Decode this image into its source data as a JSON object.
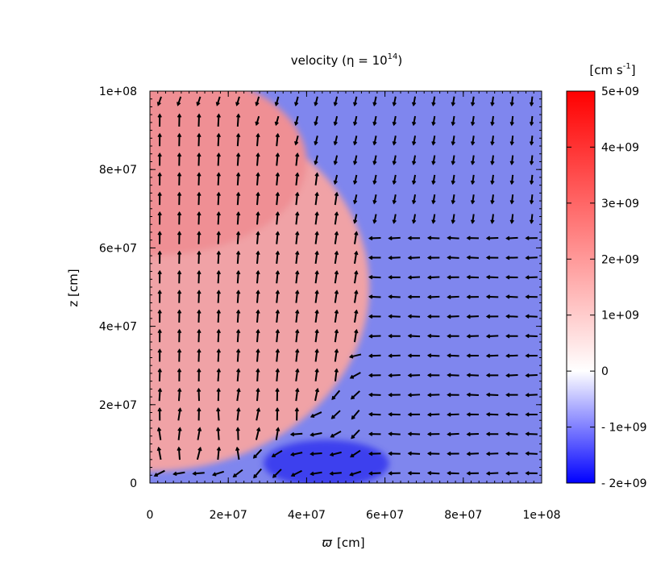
{
  "chart_data": {
    "type": "heatmap",
    "title": "velocity (η = 10",
    "title_exp": "14",
    "title_tail": ")",
    "xlabel_symbol": "ϖ",
    "xlabel_unit": "[cm]",
    "ylabel": "z [cm]",
    "colorbar_label": "[cm s",
    "colorbar_label_exp": "-1",
    "colorbar_label_tail": "]",
    "x_ticks": [
      {
        "value": 0,
        "label": "0"
      },
      {
        "value": 20000000.0,
        "label": "2e+07"
      },
      {
        "value": 40000000.0,
        "label": "4e+07"
      },
      {
        "value": 60000000.0,
        "label": "6e+07"
      },
      {
        "value": 80000000.0,
        "label": "8e+07"
      },
      {
        "value": 100000000.0,
        "label": "1e+08"
      }
    ],
    "y_ticks": [
      {
        "value": 0,
        "label": "0"
      },
      {
        "value": 20000000.0,
        "label": "2e+07"
      },
      {
        "value": 40000000.0,
        "label": "4e+07"
      },
      {
        "value": 60000000.0,
        "label": "6e+07"
      },
      {
        "value": 80000000.0,
        "label": "8e+07"
      },
      {
        "value": 100000000.0,
        "label": "1e+08"
      }
    ],
    "colorbar_ticks": [
      {
        "value": 5000000000.0,
        "label": "5e+09"
      },
      {
        "value": 4000000000.0,
        "label": "4e+09"
      },
      {
        "value": 3000000000.0,
        "label": "3e+09"
      },
      {
        "value": 2000000000.0,
        "label": "2e+09"
      },
      {
        "value": 1000000000.0,
        "label": "1e+09"
      },
      {
        "value": 0,
        "label": "0"
      },
      {
        "value": -1000000000.0,
        "label": "- 1e+09"
      },
      {
        "value": -2000000000.0,
        "label": "- 2e+09"
      }
    ],
    "xlim": [
      0,
      100000000.0
    ],
    "ylim": [
      0,
      100000000.0
    ],
    "clim": [
      -2000000000.0,
      5000000000.0
    ],
    "colormap": {
      "low": "#0000ff",
      "mid": "#ffffff",
      "high": "#ff0000"
    },
    "background_color": "#7f86ee",
    "regions": [
      {
        "name": "outflow-bubble",
        "center": [
          0,
          50000000.0
        ],
        "semi_axes": [
          56000000.0,
          47000000.0
        ],
        "value": 1400000000.0,
        "color": "#f0a2a6"
      },
      {
        "name": "upper-lobe",
        "center": [
          0,
          82000000.0
        ],
        "semi_axes": [
          40000000.0,
          24000000.0
        ],
        "value": 1600000000.0,
        "color": "#ef8f94"
      },
      {
        "name": "inflow-band",
        "center": [
          45000000.0,
          5000000.0
        ],
        "semi_axes": [
          16000000.0,
          6000000.0
        ],
        "value": -1600000000.0,
        "color": "#3e40ee"
      }
    ],
    "vector_field": {
      "quantity": "velocity",
      "grid_nx": 20,
      "grid_ny": 20
    }
  }
}
